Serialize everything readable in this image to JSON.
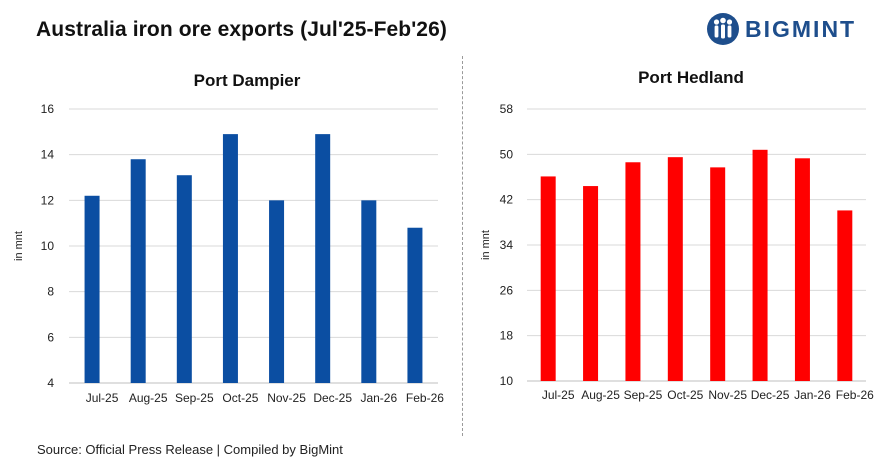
{
  "title": "Australia iron ore exports (Jul'25-Feb'26)",
  "logo": {
    "text": "BIGMINT",
    "icon": "bigmint-people-logo-icon"
  },
  "source": "Source: Official Press Release | Compiled by BigMint",
  "colors": {
    "dampier": "#0b4ea2",
    "hedland": "#ff0000",
    "grid": "#d9d9d9",
    "brand": "#1e4e8c"
  },
  "chart_data": [
    {
      "type": "bar",
      "title": "Port Dampier",
      "ylabel": "in mnt",
      "xlabel": "",
      "categories": [
        "Jul-25",
        "Aug-25",
        "Sep-25",
        "Oct-25",
        "Nov-25",
        "Dec-25",
        "Jan-26",
        "Feb-26"
      ],
      "values": [
        12.2,
        13.8,
        13.1,
        14.9,
        12.0,
        14.9,
        12.0,
        10.8
      ],
      "ylim": [
        4,
        16
      ],
      "yticks": [
        4,
        6,
        8,
        10,
        12,
        14,
        16
      ],
      "grid": true,
      "color": "#0b4ea2"
    },
    {
      "type": "bar",
      "title": "Port Hedland",
      "ylabel": "in mnt",
      "xlabel": "",
      "categories": [
        "Jul-25",
        "Aug-25",
        "Sep-25",
        "Oct-25",
        "Nov-25",
        "Dec-25",
        "Jan-26",
        "Feb-26"
      ],
      "values": [
        46.1,
        44.4,
        48.6,
        49.5,
        47.7,
        50.8,
        49.3,
        40.1
      ],
      "ylim": [
        10,
        58
      ],
      "yticks": [
        10,
        18,
        26,
        34,
        42,
        50,
        58
      ],
      "grid": true,
      "color": "#ff0000"
    }
  ]
}
